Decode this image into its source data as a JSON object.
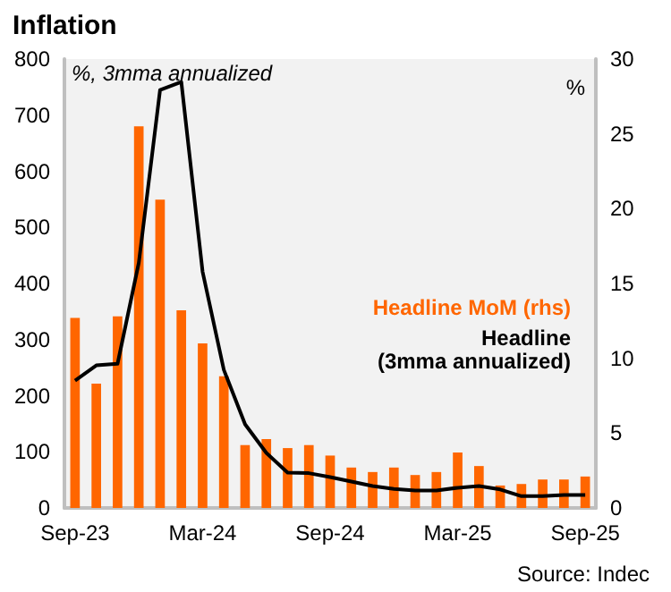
{
  "chart_data": {
    "type": "bar",
    "title": "Inflation",
    "ylabel": "%, 3mma annualized",
    "y2label": "%",
    "categories": [
      "Sep-23",
      null,
      null,
      null,
      null,
      null,
      "Mar-24",
      null,
      null,
      null,
      null,
      null,
      "Sep-24",
      null,
      null,
      null,
      null,
      null,
      "Mar-25",
      null,
      null,
      null,
      null,
      null,
      "Sep-25"
    ],
    "series": [
      {
        "name": "Headline MoM (rhs)",
        "axis": "y2",
        "color": "#ff6600",
        "values": [
          12.7,
          8.3,
          12.8,
          25.5,
          20.6,
          13.2,
          11.0,
          8.8,
          4.2,
          4.6,
          4.0,
          4.2,
          3.5,
          2.7,
          2.4,
          2.7,
          2.2,
          2.4,
          3.7,
          2.8,
          1.5,
          1.6,
          1.9,
          1.9,
          2.1
        ]
      },
      {
        "name": "Headline (3mma annualized)",
        "type": "line",
        "color": "#000000",
        "values": [
          227,
          254,
          257,
          437,
          745,
          759,
          421,
          246,
          149,
          98,
          63,
          62,
          55,
          47,
          39,
          34,
          31,
          31,
          36,
          39,
          33,
          21,
          21,
          23,
          23
        ]
      }
    ],
    "ylim": [
      0,
      800
    ],
    "yticks": [
      0,
      100,
      200,
      300,
      400,
      500,
      600,
      700,
      800
    ],
    "y2lim": [
      0,
      30
    ],
    "y2ticks": [
      0,
      5,
      10,
      15,
      20,
      25,
      30
    ],
    "grid": false,
    "legend": "right",
    "marker": "none",
    "annotations": [
      "Source: Indec"
    ]
  }
}
